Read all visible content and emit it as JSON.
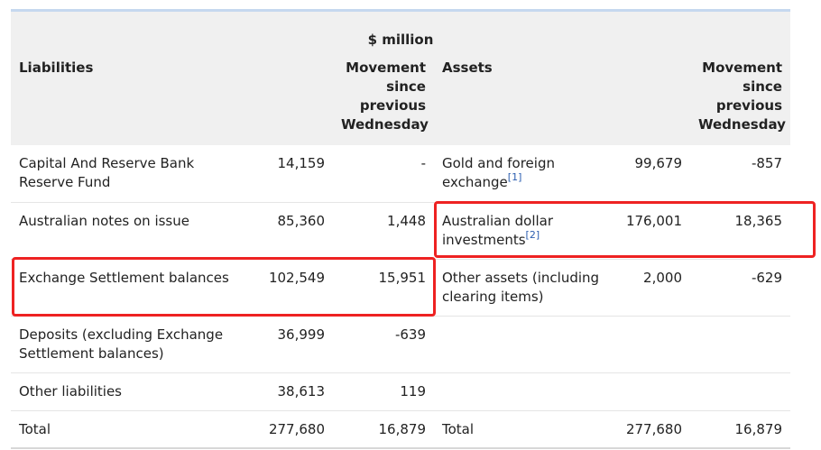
{
  "unit": "$ million",
  "headers": {
    "liabilities": "Liabilities",
    "assets": "Assets",
    "movement": "Movement since previous Wednesday"
  },
  "rows": [
    {
      "liability": "Capital And Reserve Bank Reserve Fund",
      "liability_value": "14,159",
      "liability_movement": "-",
      "asset": "Gold and foreign exchange",
      "asset_ref": "[1]",
      "asset_value": "99,679",
      "asset_movement": "-857"
    },
    {
      "liability": "Australian notes on issue",
      "liability_value": "85,360",
      "liability_movement": "1,448",
      "asset": "Australian dollar investments",
      "asset_ref": "[2]",
      "asset_value": "176,001",
      "asset_movement": "18,365"
    },
    {
      "liability": "Exchange Settlement balances",
      "liability_value": "102,549",
      "liability_movement": "15,951",
      "asset": "Other assets (including clearing items)",
      "asset_ref": "",
      "asset_value": "2,000",
      "asset_movement": "-629"
    },
    {
      "liability": "Deposits (excluding Exchange Settlement balances)",
      "liability_value": "36,999",
      "liability_movement": "-639",
      "asset": "",
      "asset_ref": "",
      "asset_value": "",
      "asset_movement": ""
    },
    {
      "liability": "Other liabilities",
      "liability_value": "38,613",
      "liability_movement": "119",
      "asset": "",
      "asset_ref": "",
      "asset_value": "",
      "asset_movement": ""
    }
  ],
  "totals": {
    "label": "Total",
    "liability_value": "277,680",
    "liability_movement": "16,879",
    "asset_value": "277,680",
    "asset_movement": "16,879"
  },
  "colors": {
    "highlight": "#ee2222",
    "header_bg": "#f0f0f0",
    "ref_link": "#2a5db0"
  }
}
